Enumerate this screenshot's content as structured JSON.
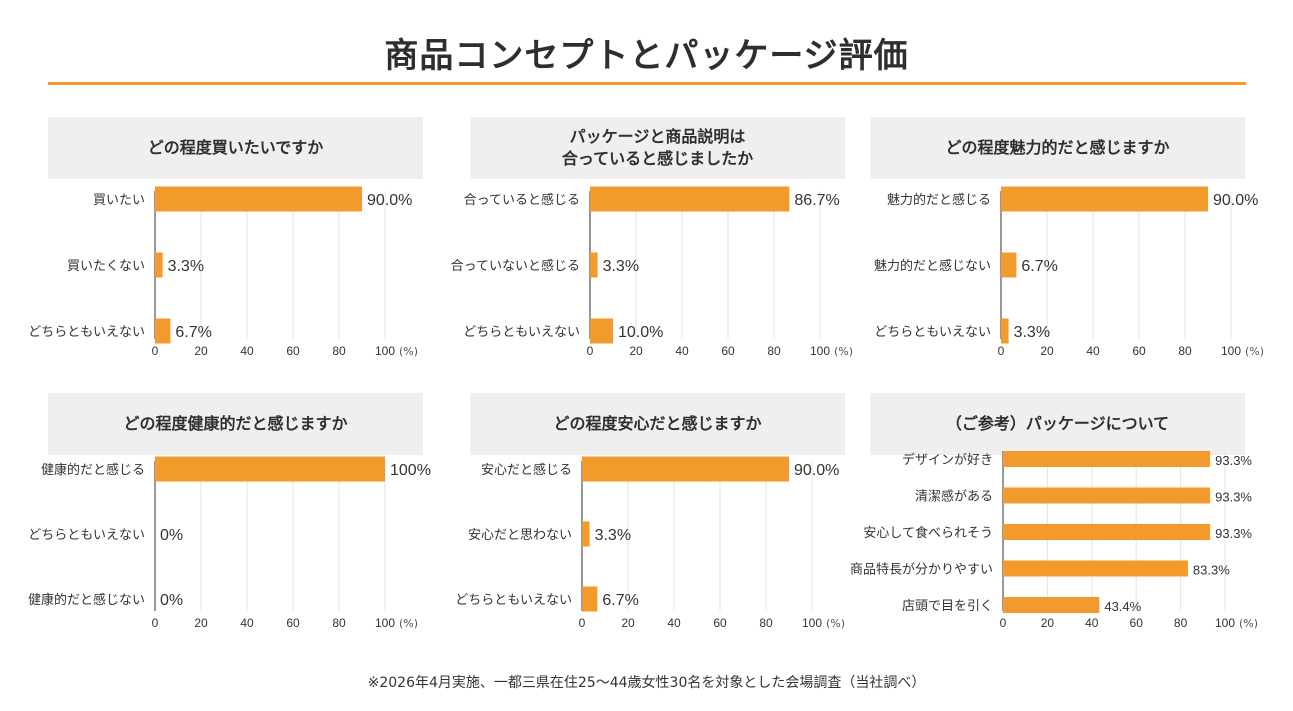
{
  "page": {
    "title": "商品コンセプトとパッケージ評価",
    "footnote": "※2026年4月実施、一都三県在住25～44歳女性30名を対象とした会場調査（当社調べ）"
  },
  "colors": {
    "bar": "#F39A2C",
    "accent": "#F39A2C",
    "header_bg": "#efefef"
  },
  "chart_data": [
    {
      "type": "bar",
      "orientation": "horizontal",
      "title": "どの程度買いたいですか",
      "categories": [
        "買いたい",
        "買いたくない",
        "どちらともいえない"
      ],
      "values": [
        90.0,
        3.3,
        6.7
      ],
      "value_labels": [
        "90.0%",
        "3.3%",
        "6.7%"
      ],
      "xlim": [
        0,
        100
      ],
      "ticks": [
        "0",
        "20",
        "40",
        "60",
        "80",
        "100"
      ],
      "unit": "(%)",
      "grid": true
    },
    {
      "type": "bar",
      "orientation": "horizontal",
      "title": "パッケージと商品説明は\n合っていると感じましたか",
      "categories": [
        "合っていると感じる",
        "合っていないと感じる",
        "どちらともいえない"
      ],
      "values": [
        86.7,
        3.3,
        10.0
      ],
      "value_labels": [
        "86.7%",
        "3.3%",
        "10.0%"
      ],
      "xlim": [
        0,
        100
      ],
      "ticks": [
        "0",
        "20",
        "40",
        "60",
        "80",
        "100"
      ],
      "unit": "(%)",
      "grid": true
    },
    {
      "type": "bar",
      "orientation": "horizontal",
      "title": "どの程度魅力的だと感じますか",
      "categories": [
        "魅力的だと感じる",
        "魅力的だと感じない",
        "どちらともいえない"
      ],
      "values": [
        90.0,
        6.7,
        3.3
      ],
      "value_labels": [
        "90.0%",
        "6.7%",
        "3.3%"
      ],
      "xlim": [
        0,
        100
      ],
      "ticks": [
        "0",
        "20",
        "40",
        "60",
        "80",
        "100"
      ],
      "unit": "(%)",
      "grid": true
    },
    {
      "type": "bar",
      "orientation": "horizontal",
      "title": "どの程度健康的だと感じますか",
      "categories": [
        "健康的だと感じる",
        "どちらともいえない",
        "健康的だと感じない"
      ],
      "values": [
        100,
        0,
        0
      ],
      "value_labels": [
        "100%",
        "0%",
        "0%"
      ],
      "xlim": [
        0,
        100
      ],
      "ticks": [
        "0",
        "20",
        "40",
        "60",
        "80",
        "100"
      ],
      "unit": "(%)",
      "grid": true
    },
    {
      "type": "bar",
      "orientation": "horizontal",
      "title": "どの程度安心だと感じますか",
      "categories": [
        "安心だと感じる",
        "安心だと思わない",
        "どちらともいえない"
      ],
      "values": [
        90.0,
        3.3,
        6.7
      ],
      "value_labels": [
        "90.0%",
        "3.3%",
        "6.7%"
      ],
      "xlim": [
        0,
        100
      ],
      "ticks": [
        "0",
        "20",
        "40",
        "60",
        "80",
        "100"
      ],
      "unit": "(%)",
      "grid": true
    },
    {
      "type": "bar",
      "orientation": "horizontal",
      "title": "（ご参考）パッケージについて",
      "categories": [
        "デザインが好き",
        "清潔感がある",
        "安心して食べられそう",
        "商品特長が分かりやすい",
        "店頭で目を引く"
      ],
      "values": [
        93.3,
        93.3,
        93.3,
        83.3,
        43.4
      ],
      "value_labels": [
        "93.3%",
        "93.3%",
        "93.3%",
        "83.3%",
        "43.4%"
      ],
      "xlim": [
        0,
        100
      ],
      "ticks": [
        "0",
        "20",
        "40",
        "60",
        "80",
        "100"
      ],
      "unit": "(%)",
      "grid": true
    }
  ]
}
